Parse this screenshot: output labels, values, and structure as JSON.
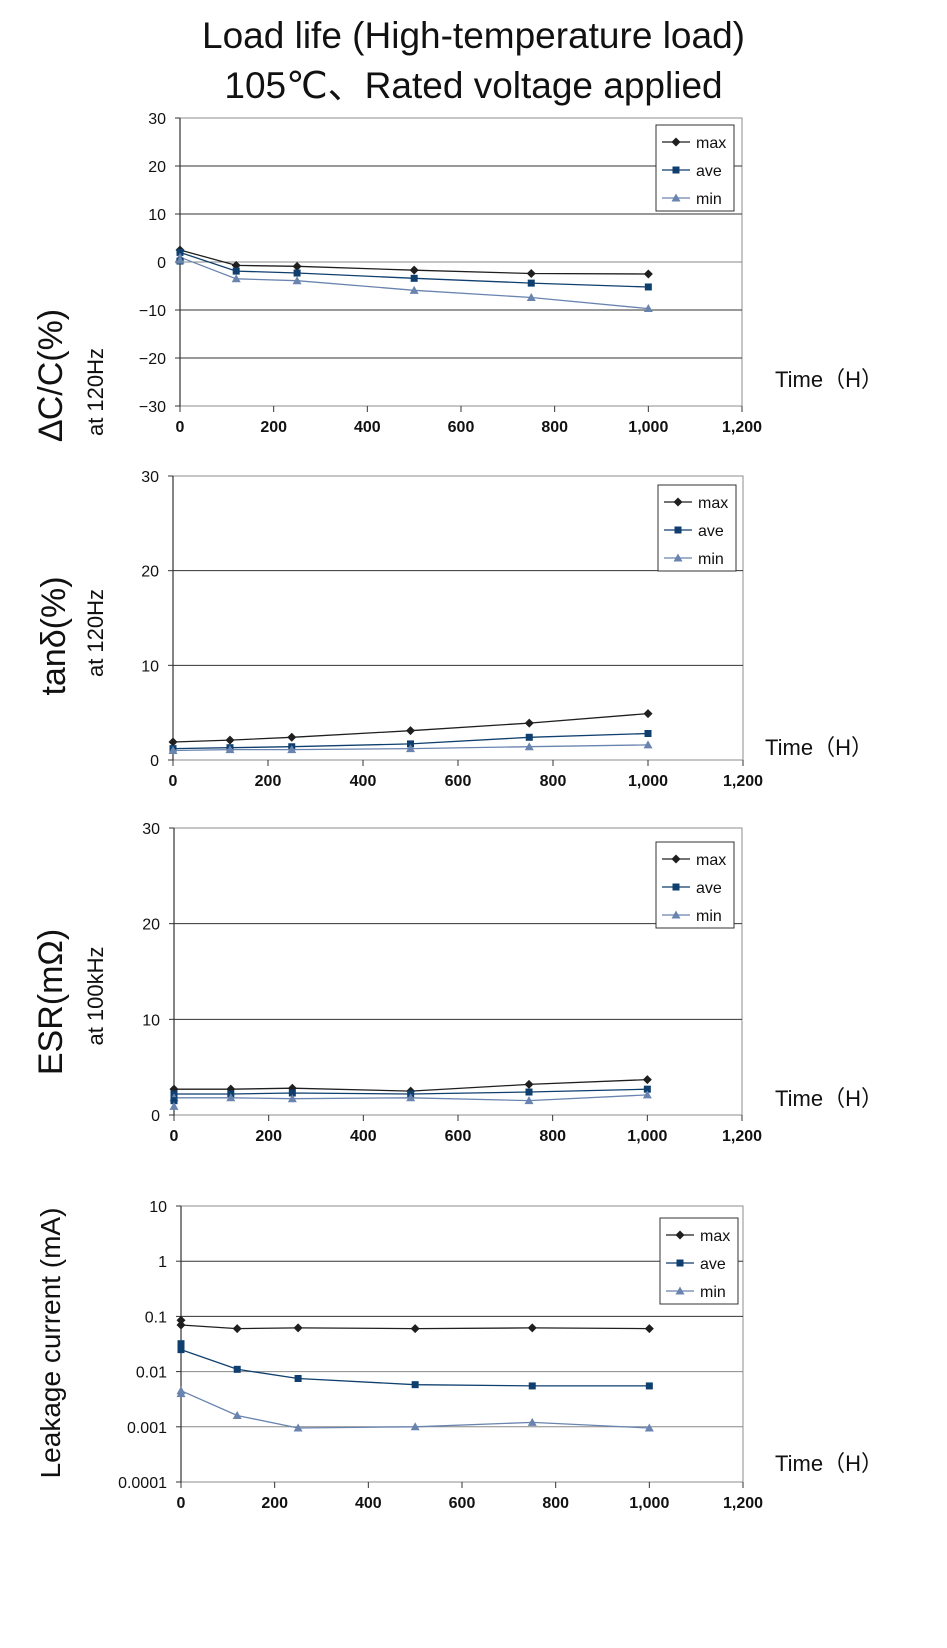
{
  "title_line1": "Load life (High-temperature load)",
  "title_line2": "105℃、Rated voltage applied",
  "colors": {
    "max": "#1f1f1f",
    "ave": "#0f3f6e",
    "min": "#6a84b0"
  },
  "chart_data": [
    {
      "type": "line",
      "ylabel": "∆C/C(%)",
      "ylabel_sub": "at 120Hz",
      "xlabel": "Time（H）",
      "x_ticks": [
        "0",
        "200",
        "400",
        "600",
        "800",
        "1,000",
        "1,200"
      ],
      "y_ticks": [
        "30",
        "20",
        "10",
        "0",
        "−10",
        "−20",
        "−30"
      ],
      "xlim": [
        0,
        1200
      ],
      "ylim": [
        -30,
        30
      ],
      "yscale": "linear",
      "grid": "horizontal",
      "legend": "top-right",
      "x": [
        0,
        120,
        250,
        500,
        750,
        1000
      ],
      "series": [
        {
          "name": "max",
          "marker": "diamond",
          "values": [
            2.5,
            -0.7,
            -0.9,
            -1.7,
            -2.4,
            -2.5
          ]
        },
        {
          "name": "ave",
          "marker": "square",
          "values": [
            2.0,
            -1.9,
            -2.3,
            -3.4,
            -4.4,
            -5.2
          ]
        },
        {
          "name": "min",
          "marker": "triangle",
          "values": [
            1.0,
            -3.5,
            -3.9,
            -5.9,
            -7.4,
            -9.7
          ]
        }
      ],
      "extra_points": [
        {
          "series": "ave",
          "x": 0,
          "y": 0.2
        },
        {
          "series": "min",
          "x": 0,
          "y": 0.4
        }
      ]
    },
    {
      "type": "line",
      "ylabel": "tanδ(%)",
      "ylabel_sub": "at 120Hz",
      "xlabel": "Time（H）",
      "x_ticks": [
        "0",
        "200",
        "400",
        "600",
        "800",
        "1,000",
        "1,200"
      ],
      "y_ticks": [
        "30",
        "20",
        "10",
        "0"
      ],
      "xlim": [
        0,
        1200
      ],
      "ylim": [
        0,
        30
      ],
      "yscale": "linear",
      "grid": "horizontal",
      "legend": "top-right",
      "x": [
        0,
        120,
        250,
        500,
        750,
        1000
      ],
      "series": [
        {
          "name": "max",
          "marker": "diamond",
          "values": [
            1.9,
            2.1,
            2.4,
            3.1,
            3.9,
            4.9
          ]
        },
        {
          "name": "ave",
          "marker": "square",
          "values": [
            1.2,
            1.3,
            1.4,
            1.7,
            2.4,
            2.8
          ]
        },
        {
          "name": "min",
          "marker": "triangle",
          "values": [
            1.0,
            1.1,
            1.1,
            1.2,
            1.4,
            1.6
          ]
        }
      ],
      "extra_points": []
    },
    {
      "type": "line",
      "ylabel": "ESR(mΩ)",
      "ylabel_sub": "at 100kHz",
      "xlabel": "Time（H）",
      "x_ticks": [
        "0",
        "200",
        "400",
        "600",
        "800",
        "1,000",
        "1,200"
      ],
      "y_ticks": [
        "30",
        "20",
        "10",
        "0"
      ],
      "xlim": [
        0,
        1200
      ],
      "ylim": [
        0,
        30
      ],
      "yscale": "linear",
      "grid": "horizontal",
      "legend": "top-right",
      "x": [
        0,
        120,
        250,
        500,
        750,
        1000
      ],
      "series": [
        {
          "name": "max",
          "marker": "diamond",
          "values": [
            2.7,
            2.7,
            2.8,
            2.5,
            3.2,
            3.7
          ]
        },
        {
          "name": "ave",
          "marker": "square",
          "values": [
            2.2,
            2.2,
            2.3,
            2.2,
            2.4,
            2.7
          ]
        },
        {
          "name": "min",
          "marker": "triangle",
          "values": [
            1.8,
            1.8,
            1.7,
            1.8,
            1.5,
            2.1
          ]
        }
      ],
      "extra_points": [
        {
          "series": "ave",
          "x": 0,
          "y": 1.5
        },
        {
          "series": "min",
          "x": 0,
          "y": 0.9
        }
      ]
    },
    {
      "type": "line",
      "ylabel": "Leakage current (mA)",
      "ylabel_sub": "",
      "xlabel": "Time（H）",
      "x_ticks": [
        "0",
        "200",
        "400",
        "600",
        "800",
        "1,000",
        "1,200"
      ],
      "y_ticks": [
        "10",
        "1",
        "0.1",
        "0.01",
        "0.001",
        "0.0001"
      ],
      "xlim": [
        0,
        1200
      ],
      "ylim": [
        0.0001,
        10
      ],
      "yscale": "log",
      "grid": "horizontal",
      "legend": "top-right",
      "x": [
        0,
        120,
        250,
        500,
        750,
        1000
      ],
      "series": [
        {
          "name": "max",
          "marker": "diamond",
          "values": [
            0.07,
            0.06,
            0.062,
            0.06,
            0.062,
            0.06
          ]
        },
        {
          "name": "ave",
          "marker": "square",
          "values": [
            0.025,
            0.011,
            0.0075,
            0.0058,
            0.0055,
            0.0055
          ]
        },
        {
          "name": "min",
          "marker": "triangle",
          "values": [
            0.0045,
            0.0016,
            0.00095,
            0.001,
            0.0012,
            0.00095
          ]
        }
      ],
      "extra_points": [
        {
          "series": "max",
          "x": 0,
          "y": 0.085
        },
        {
          "series": "ave",
          "x": 0,
          "y": 0.032
        },
        {
          "series": "min",
          "x": 0,
          "y": 0.004
        }
      ]
    }
  ]
}
